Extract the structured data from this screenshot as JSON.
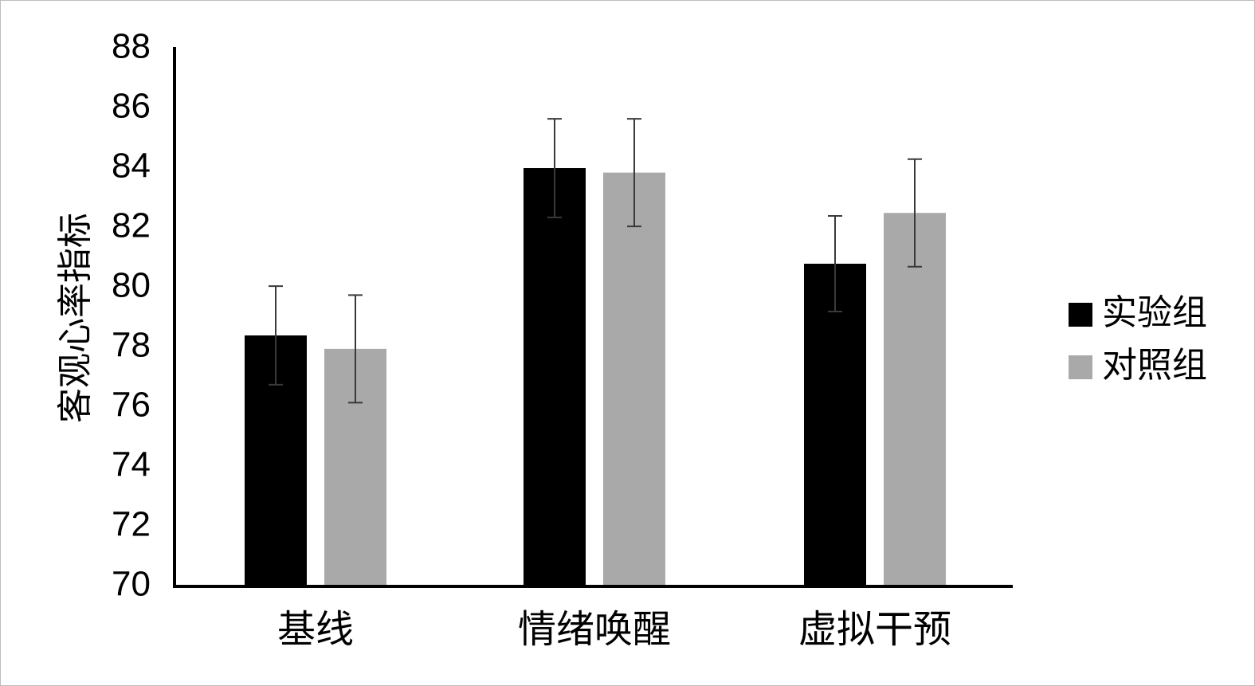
{
  "chart_data": {
    "type": "bar",
    "title": "",
    "xlabel": "",
    "ylabel": "客观心率指标",
    "categories": [
      "基线",
      "情绪唤醒",
      "虚拟干预"
    ],
    "series": [
      {
        "name": "实验组",
        "color": "#000000",
        "values": [
          78.4,
          84.0,
          80.8
        ],
        "error": [
          1.65,
          1.65,
          1.6
        ]
      },
      {
        "name": "对照组",
        "color": "#a9a9a9",
        "values": [
          77.95,
          83.85,
          82.5
        ],
        "error": [
          1.8,
          1.8,
          1.8
        ]
      }
    ],
    "ylim": [
      70,
      88
    ],
    "yticks": [
      70,
      72,
      74,
      76,
      78,
      80,
      82,
      84,
      86,
      88
    ],
    "grid": false,
    "legend_position": "right"
  }
}
